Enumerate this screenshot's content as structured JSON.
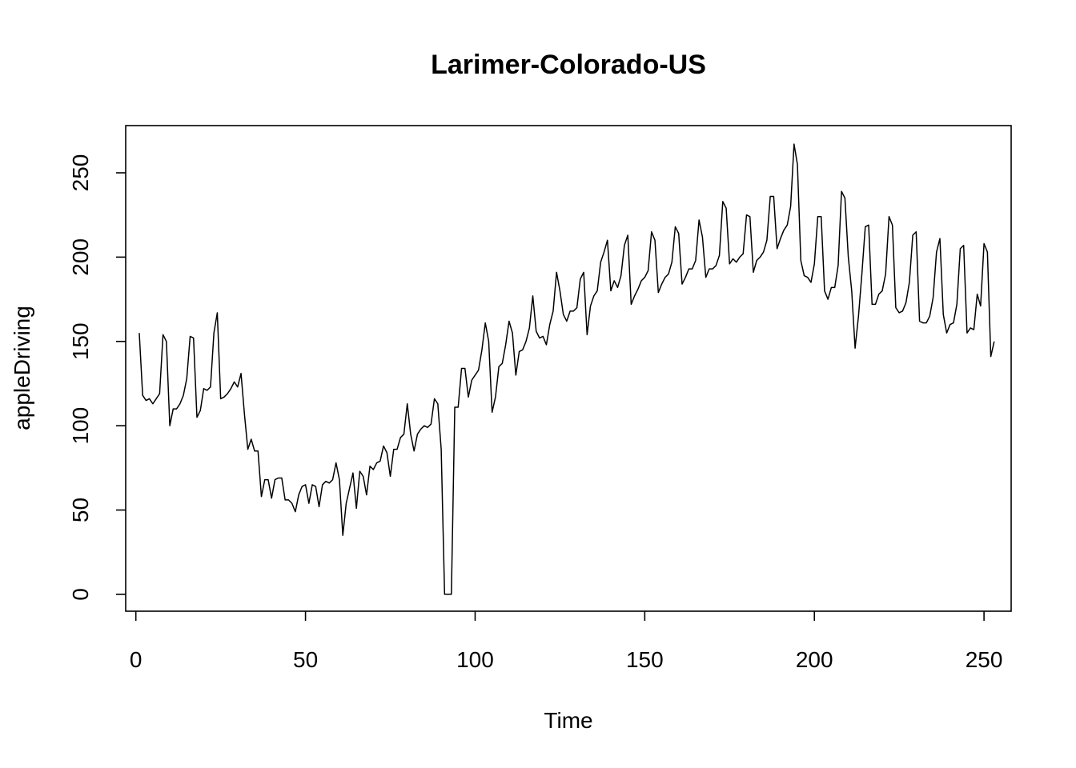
{
  "chart_data": {
    "type": "line",
    "title": "Larimer-Colorado-US",
    "xlabel": "Time",
    "ylabel": "appleDriving",
    "xlim": [
      -3,
      258
    ],
    "ylim": [
      -10,
      278
    ],
    "xticks": [
      0,
      50,
      100,
      150,
      200,
      250
    ],
    "yticks": [
      0,
      50,
      100,
      150,
      200,
      250
    ],
    "grid": false,
    "legend": "none",
    "line_color": "#000000",
    "series": [
      {
        "values": [
          155,
          118,
          115,
          116,
          113,
          116,
          119,
          154,
          150,
          100,
          110,
          110,
          113,
          118,
          128,
          153,
          152,
          105,
          109,
          122,
          121,
          123,
          155,
          167,
          116,
          117,
          119,
          122,
          126,
          123,
          131,
          107,
          86,
          92,
          85,
          85,
          58,
          68,
          68,
          57,
          68,
          69,
          69,
          56,
          56,
          54,
          49,
          59,
          64,
          65,
          54,
          65,
          64,
          52,
          65,
          67,
          66,
          68,
          78,
          68,
          35,
          54,
          63,
          72,
          51,
          73,
          70,
          59,
          76,
          74,
          78,
          79,
          88,
          84,
          70,
          86,
          86,
          93,
          95,
          113,
          95,
          85,
          95,
          98,
          100,
          99,
          101,
          116,
          113,
          86,
          0,
          0,
          0,
          111,
          111,
          134,
          134,
          117,
          127,
          130,
          133,
          145,
          161,
          150,
          108,
          117,
          135,
          137,
          148,
          162,
          155,
          130,
          144,
          145,
          150,
          158,
          177,
          156,
          152,
          153,
          148,
          160,
          168,
          191,
          180,
          166,
          162,
          168,
          168,
          170,
          187,
          191,
          154,
          171,
          177,
          180,
          197,
          203,
          210,
          180,
          186,
          182,
          189,
          207,
          213,
          172,
          177,
          181,
          186,
          188,
          192,
          215,
          210,
          179,
          184,
          188,
          190,
          197,
          218,
          214,
          184,
          188,
          193,
          193,
          198,
          222,
          212,
          188,
          193,
          193,
          195,
          201,
          233,
          229,
          196,
          199,
          197,
          200,
          202,
          225,
          224,
          191,
          198,
          200,
          203,
          210,
          236,
          236,
          205,
          211,
          216,
          219,
          230,
          267,
          255,
          198,
          189,
          188,
          185,
          196,
          224,
          224,
          180,
          175,
          182,
          182,
          195,
          239,
          235,
          200,
          180,
          146,
          165,
          190,
          218,
          219,
          172,
          172,
          178,
          180,
          190,
          224,
          219,
          170,
          167,
          168,
          173,
          185,
          213,
          215,
          162,
          161,
          161,
          165,
          176,
          203,
          211,
          166,
          155,
          160,
          161,
          172,
          205,
          207,
          155,
          158,
          157,
          178,
          171,
          208,
          203,
          141,
          150
        ]
      }
    ]
  }
}
